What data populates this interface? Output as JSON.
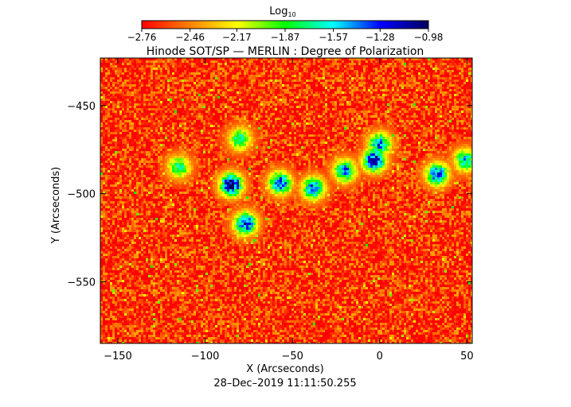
{
  "chart_data": {
    "type": "heatmap",
    "title": "Hinode SOT/SP — MERLIN : Degree of Polarization",
    "colorbar": {
      "label": "Log",
      "label_subscript": "10",
      "min": -2.76,
      "max": -0.98,
      "tick_labels": [
        "−2.76",
        "−2.46",
        "−2.17",
        "−1.87",
        "−1.57",
        "−1.28",
        "−0.98"
      ],
      "tick_values": [
        -2.76,
        -2.46,
        -2.17,
        -1.87,
        -1.57,
        -1.28,
        -0.98
      ],
      "colors": [
        "#ff0000",
        "#ff8000",
        "#ffff00",
        "#00ff00",
        "#00ffff",
        "#0000ff",
        "#000060"
      ]
    },
    "xlabel": "X (Arcseconds)",
    "ylabel": "Y (Arcseconds)",
    "xlim": [
      -160,
      53
    ],
    "ylim": [
      -585,
      -423
    ],
    "x_ticks": [
      -150,
      -100,
      -50,
      0,
      50
    ],
    "x_tick_labels": [
      "−150",
      "−100",
      "−50",
      "0",
      "50"
    ],
    "y_ticks": [
      -450,
      -500,
      -550
    ],
    "y_tick_labels": [
      "−450",
      "−500",
      "−550"
    ],
    "background_level": -2.65,
    "features": [
      {
        "name": "main-plage",
        "x": -85,
        "y": -495,
        "peak": -1.0
      },
      {
        "name": "plage-tail",
        "x": -77,
        "y": -517,
        "peak": -1.2
      },
      {
        "name": "channel-west",
        "x": -57,
        "y": -494,
        "peak": -1.3
      },
      {
        "name": "channel-mid",
        "x": -38,
        "y": -497,
        "peak": -1.35
      },
      {
        "name": "channel-link",
        "x": -20,
        "y": -487,
        "peak": -1.45
      },
      {
        "name": "east-cluster",
        "x": -3,
        "y": -481,
        "peak": -1.05
      },
      {
        "name": "east-arc",
        "x": 0,
        "y": -472,
        "peak": -1.4
      },
      {
        "name": "north-fleck",
        "x": -80,
        "y": -469,
        "peak": -1.7
      },
      {
        "name": "limb-right",
        "x": 33,
        "y": -489,
        "peak": -1.3
      },
      {
        "name": "edge-right",
        "x": 49,
        "y": -481,
        "peak": -1.6
      },
      {
        "name": "west-fleck",
        "x": -115,
        "y": -485,
        "peak": -1.7
      }
    ],
    "footer": "28–Dec–2019 11:11:50.255",
    "grid": false
  }
}
